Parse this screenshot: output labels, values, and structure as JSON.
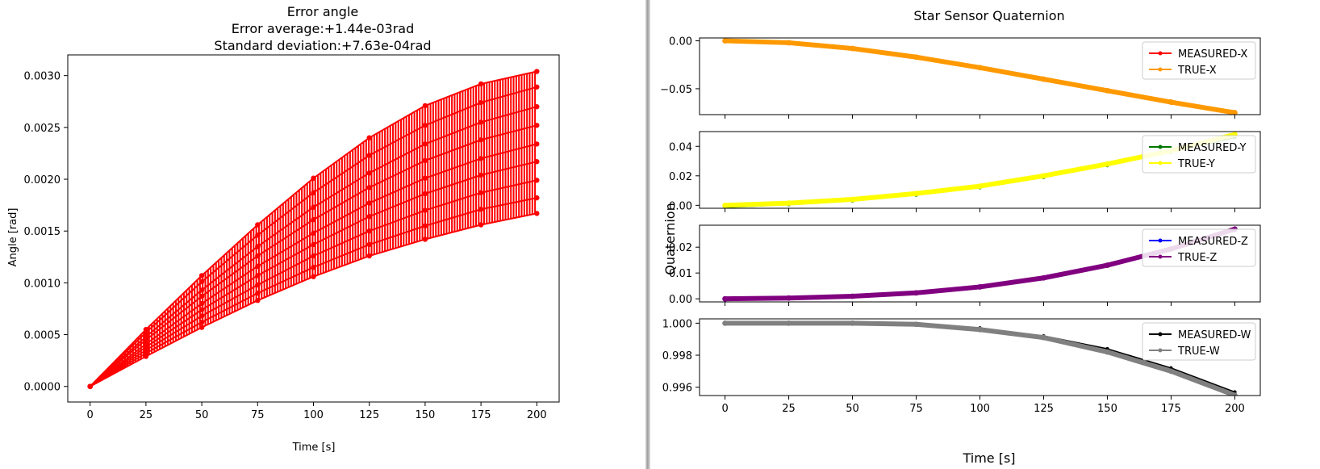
{
  "chart_data": [
    {
      "type": "scatter",
      "title": "Error angle",
      "subtitle_lines": [
        "Error average:+1.44e-03rad",
        "Standard deviation:+7.63e-04rad"
      ],
      "xlabel": "Time [s]",
      "ylabel": "Angle [rad]",
      "xlim": [
        -10,
        210
      ],
      "ylim": [
        -0.00015,
        0.0032
      ],
      "xticks": [
        0,
        25,
        50,
        75,
        100,
        125,
        150,
        175,
        200
      ],
      "yticks": [
        0.0,
        0.0005,
        0.001,
        0.0015,
        0.002,
        0.0025,
        0.003
      ],
      "ytick_labels": [
        "0.0000",
        "0.0005",
        "0.0010",
        "0.0015",
        "0.0020",
        "0.0025",
        "0.0030"
      ],
      "grid": false,
      "marker": "o",
      "color": "#ff0000",
      "series": [
        {
          "x": [
            0,
            25,
            50,
            75,
            100,
            125,
            150,
            175,
            200
          ],
          "values": [
            0,
            0.00055,
            0.00107,
            0.00156,
            0.00201,
            0.0024,
            0.00271,
            0.00292,
            0.00304
          ]
        },
        {
          "x": [
            0,
            25,
            50,
            75,
            100,
            125,
            150,
            175,
            200
          ],
          "values": [
            0,
            0.00052,
            0.00101,
            0.00146,
            0.00187,
            0.00223,
            0.00252,
            0.00274,
            0.00289
          ]
        },
        {
          "x": [
            0,
            25,
            50,
            75,
            100,
            125,
            150,
            175,
            200
          ],
          "values": [
            0,
            0.00048,
            0.00093,
            0.00135,
            0.00173,
            0.00206,
            0.00234,
            0.00255,
            0.0027
          ]
        },
        {
          "x": [
            0,
            25,
            50,
            75,
            100,
            125,
            150,
            175,
            200
          ],
          "values": [
            0,
            0.00045,
            0.00087,
            0.00126,
            0.00161,
            0.00192,
            0.00218,
            0.00238,
            0.00252
          ]
        },
        {
          "x": [
            0,
            25,
            50,
            75,
            100,
            125,
            150,
            175,
            200
          ],
          "values": [
            0,
            0.00041,
            0.0008,
            0.00116,
            0.00148,
            0.00177,
            0.00201,
            0.0022,
            0.00234
          ]
        },
        {
          "x": [
            0,
            25,
            50,
            75,
            100,
            125,
            150,
            175,
            200
          ],
          "values": [
            0,
            0.00038,
            0.00074,
            0.00107,
            0.00137,
            0.00164,
            0.00186,
            0.00204,
            0.00217
          ]
        },
        {
          "x": [
            0,
            25,
            50,
            75,
            100,
            125,
            150,
            175,
            200
          ],
          "values": [
            0,
            0.00035,
            0.00068,
            0.00098,
            0.00126,
            0.0015,
            0.0017,
            0.00187,
            0.00199
          ]
        },
        {
          "x": [
            0,
            25,
            50,
            75,
            100,
            125,
            150,
            175,
            200
          ],
          "values": [
            0,
            0.00032,
            0.00062,
            0.0009,
            0.00115,
            0.00137,
            0.00155,
            0.00171,
            0.00182
          ]
        },
        {
          "x": [
            0,
            25,
            50,
            75,
            100,
            125,
            150,
            175,
            200
          ],
          "values": [
            0,
            0.00029,
            0.00057,
            0.00083,
            0.00106,
            0.00126,
            0.00142,
            0.00156,
            0.00167
          ]
        }
      ]
    },
    {
      "type": "line",
      "title": "Star Sensor Quaternion",
      "xlabel": "Time [s]",
      "ylabel": "Quaternion",
      "xlim": [
        -10,
        210
      ],
      "xticks": [
        0,
        25,
        50,
        75,
        100,
        125,
        150,
        175,
        200
      ],
      "x": [
        0,
        25,
        50,
        75,
        100,
        125,
        150,
        175,
        200
      ],
      "legend_position": "upper right",
      "subplots": [
        {
          "ylim": [
            -0.077,
            0.003
          ],
          "yticks": [
            0.0,
            -0.05
          ],
          "ytick_labels": [
            "0.00",
            "−0.05"
          ],
          "series": [
            {
              "name": "MEASURED-X",
              "color": "#ff0000",
              "values": [
                0.0,
                -0.002,
                -0.008,
                -0.017,
                -0.028,
                -0.04,
                -0.052,
                -0.063,
                -0.074
              ]
            },
            {
              "name": "TRUE-X",
              "color": "#ff9900",
              "values": [
                0.0,
                -0.002,
                -0.008,
                -0.017,
                -0.028,
                -0.04,
                -0.052,
                -0.064,
                -0.075
              ]
            }
          ]
        },
        {
          "ylim": [
            -0.002,
            0.05
          ],
          "yticks": [
            0.0,
            0.02,
            0.04
          ],
          "ytick_labels": [
            "0.00",
            "0.02",
            "0.04"
          ],
          "series": [
            {
              "name": "MEASURED-Y",
              "color": "#007700",
              "values": [
                -0.0015,
                0.0005,
                0.003,
                0.007,
                0.012,
                0.019,
                0.027,
                0.036,
                0.046
              ]
            },
            {
              "name": "TRUE-Y",
              "color": "#ffff00",
              "values": [
                0.0,
                0.0015,
                0.004,
                0.008,
                0.013,
                0.02,
                0.028,
                0.037,
                0.048
              ]
            }
          ]
        },
        {
          "ylim": [
            -0.0012,
            0.0285
          ],
          "yticks": [
            0.0,
            0.01,
            0.02
          ],
          "ytick_labels": [
            "0.00",
            "0.01",
            "0.02"
          ],
          "series": [
            {
              "name": "MEASURED-Z",
              "color": "#0000ff",
              "values": [
                0.0,
                0.0002,
                0.0009,
                0.0022,
                0.0045,
                0.008,
                0.0128,
                0.019,
                0.0265
              ]
            },
            {
              "name": "TRUE-Z",
              "color": "#800080",
              "values": [
                0.0,
                0.0003,
                0.001,
                0.0023,
                0.0046,
                0.0081,
                0.013,
                0.0193,
                0.027
              ]
            }
          ]
        },
        {
          "ylim": [
            0.99548,
            1.00027
          ],
          "yticks": [
            1.0,
            0.998,
            0.996
          ],
          "ytick_labels": [
            "1.000",
            "0.998",
            "0.996"
          ],
          "series": [
            {
              "name": "MEASURED-W",
              "color": "#000000",
              "values": [
                1.0,
                1.0,
                1.0,
                0.99995,
                0.9997,
                0.9992,
                0.9984,
                0.9972,
                0.9957
              ]
            },
            {
              "name": "TRUE-W",
              "color": "#808080",
              "values": [
                1.0,
                1.0,
                1.0,
                0.99993,
                0.9996,
                0.9991,
                0.9982,
                0.997,
                0.9955
              ]
            }
          ]
        }
      ]
    }
  ]
}
